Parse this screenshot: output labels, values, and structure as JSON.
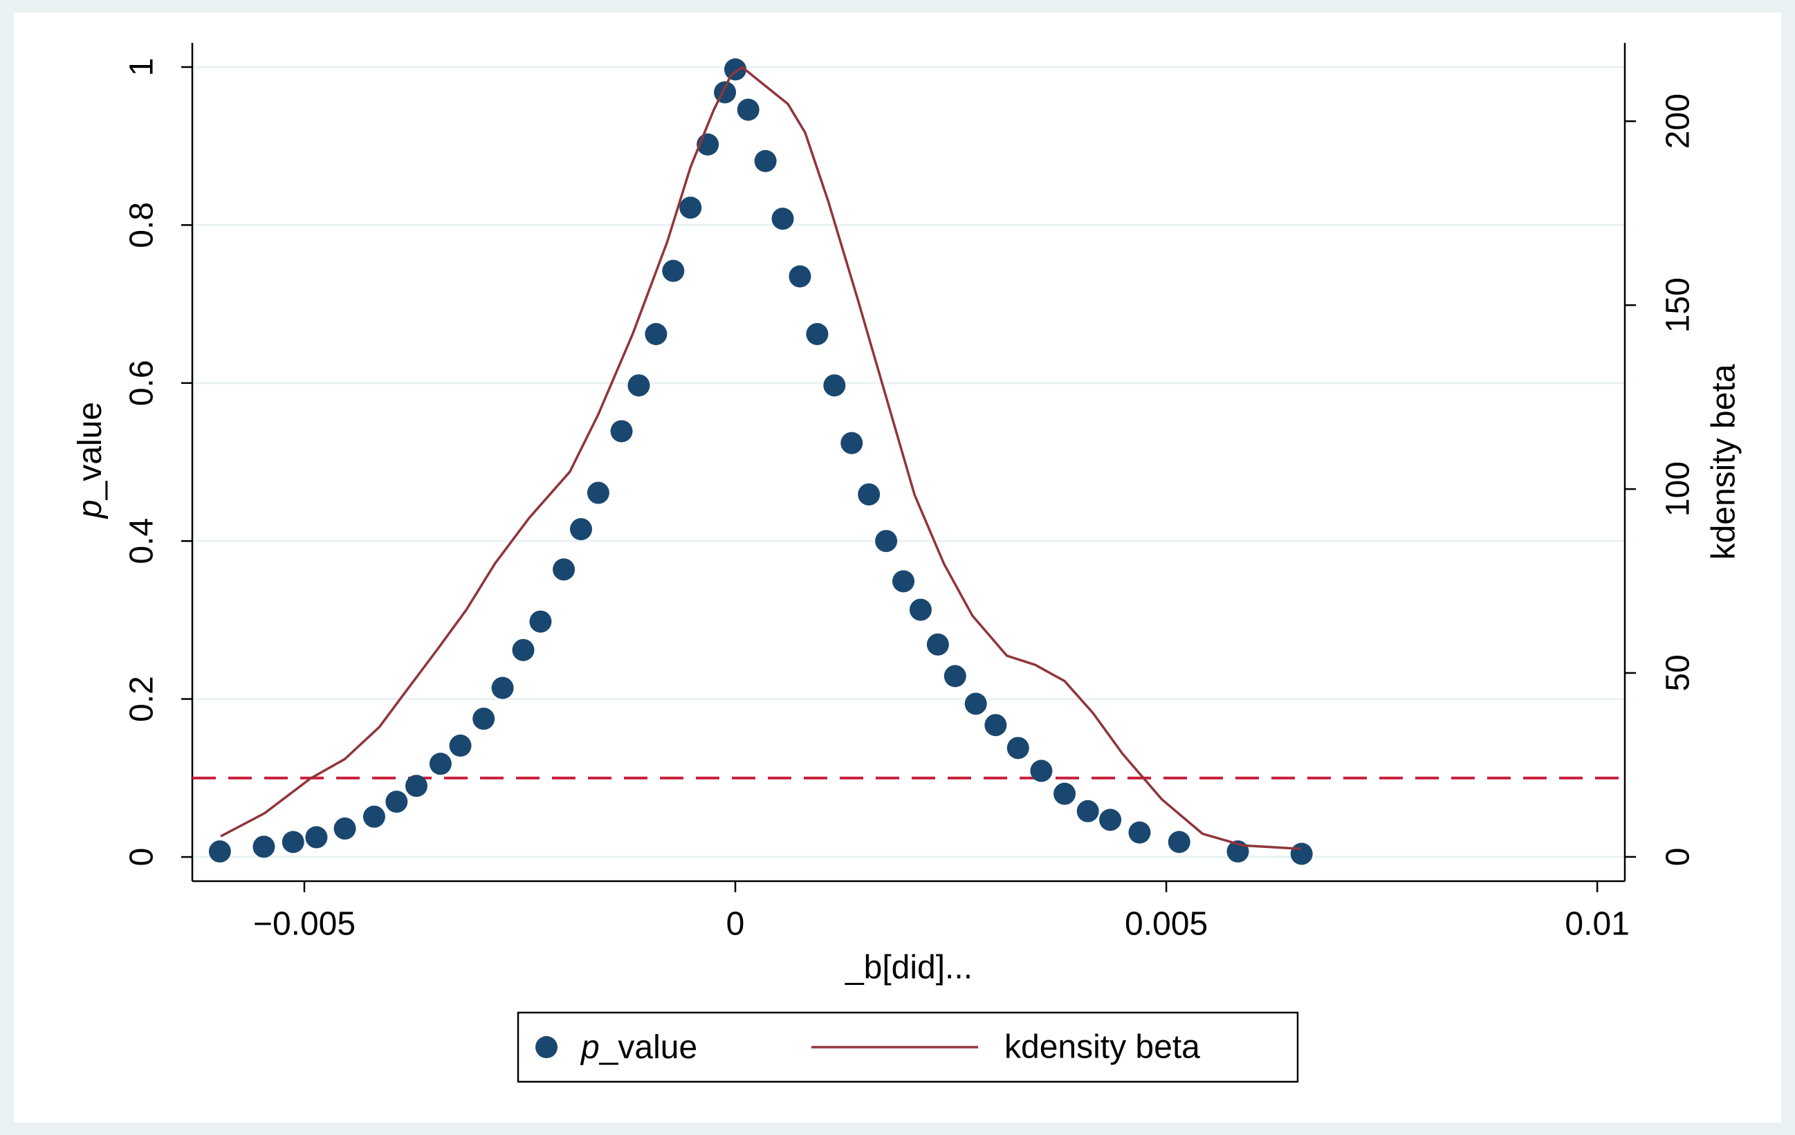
{
  "chart_data": {
    "type": "scatter",
    "x_label": "_b[did]...",
    "y_label": "p_value",
    "y2_label": "kdensity beta",
    "xlim": [
      -0.0063,
      0.01032
    ],
    "ylim": [
      -0.0306,
      1.0306
    ],
    "y2lim": [
      -6.6,
      221.3
    ],
    "xticks": [
      {
        "value": -0.005,
        "label": "−0.005"
      },
      0,
      0.005,
      0.01
    ],
    "yticks": [
      0,
      0.2,
      0.4,
      0.6,
      0.8,
      1
    ],
    "y2ticks": [
      0,
      50,
      100,
      150,
      200
    ],
    "grid": true,
    "reference_line": {
      "value": 0.1,
      "color": "#c8213d"
    },
    "legend": "bottom",
    "series": [
      {
        "name": "p_value",
        "type": "scatter",
        "color": "#1a476f",
        "x": [
          -0.00598,
          -0.00547,
          -0.00513,
          -0.00486,
          -0.00453,
          -0.00419,
          -0.00393,
          -0.0037,
          -0.00342,
          -0.00319,
          -0.00292,
          -0.0027,
          -0.00246,
          -0.00226,
          -0.00199,
          -0.00179,
          -0.00159,
          -0.00132,
          -0.00112,
          -0.00092,
          -0.00072,
          -0.00052,
          -0.00032,
          -0.00012,
          0,
          0.00015,
          0.00035,
          0.00055,
          0.00075,
          0.00095,
          0.00115,
          0.00135,
          0.00155,
          0.00175,
          0.00195,
          0.00215,
          0.00235,
          0.00255,
          0.00279,
          0.00302,
          0.00328,
          0.00355,
          0.00382,
          0.00409,
          0.00435,
          0.00469,
          0.00515,
          0.00583,
          0.00657
        ],
        "values": [
          0.007,
          0.013,
          0.019,
          0.025,
          0.036,
          0.051,
          0.07,
          0.09,
          0.118,
          0.141,
          0.175,
          0.214,
          0.262,
          0.298,
          0.364,
          0.415,
          0.461,
          0.539,
          0.597,
          0.662,
          0.742,
          0.822,
          0.902,
          0.968,
          0.997,
          0.946,
          0.881,
          0.808,
          0.735,
          0.662,
          0.597,
          0.524,
          0.459,
          0.4,
          0.349,
          0.313,
          0.269,
          0.229,
          0.194,
          0.167,
          0.138,
          0.109,
          0.08,
          0.058,
          0.047,
          0.031,
          0.019,
          0.007,
          0.004
        ]
      },
      {
        "name": "kdensity beta",
        "type": "line",
        "axis": "y2",
        "color": "#90353b",
        "x": [
          -0.00597,
          -0.00546,
          -0.00493,
          -0.00453,
          -0.00413,
          -0.00386,
          -0.00346,
          -0.00312,
          -0.00279,
          -0.00239,
          -0.00192,
          -0.00159,
          -0.00119,
          -0.00079,
          -0.00052,
          -0.00025,
          -5e-05,
          8e-05,
          0.00028,
          0.00061,
          0.00081,
          0.00108,
          0.00142,
          0.00175,
          0.00208,
          0.00242,
          0.00275,
          0.00315,
          0.00348,
          0.00382,
          0.00415,
          0.00449,
          0.00495,
          0.00542,
          0.00589,
          0.00656
        ],
        "values": [
          5.6,
          11.9,
          21.3,
          26.6,
          35.3,
          43.8,
          56.3,
          67.2,
          79.7,
          92.2,
          104.7,
          120.3,
          142.2,
          167.2,
          187.5,
          203.1,
          212.5,
          214.7,
          210.9,
          204.7,
          196.9,
          178.1,
          151.6,
          125,
          98.4,
          79.7,
          65.6,
          54.7,
          52.2,
          47.8,
          39.1,
          28.1,
          15.6,
          6.3,
          3.1,
          2.2
        ]
      }
    ]
  }
}
